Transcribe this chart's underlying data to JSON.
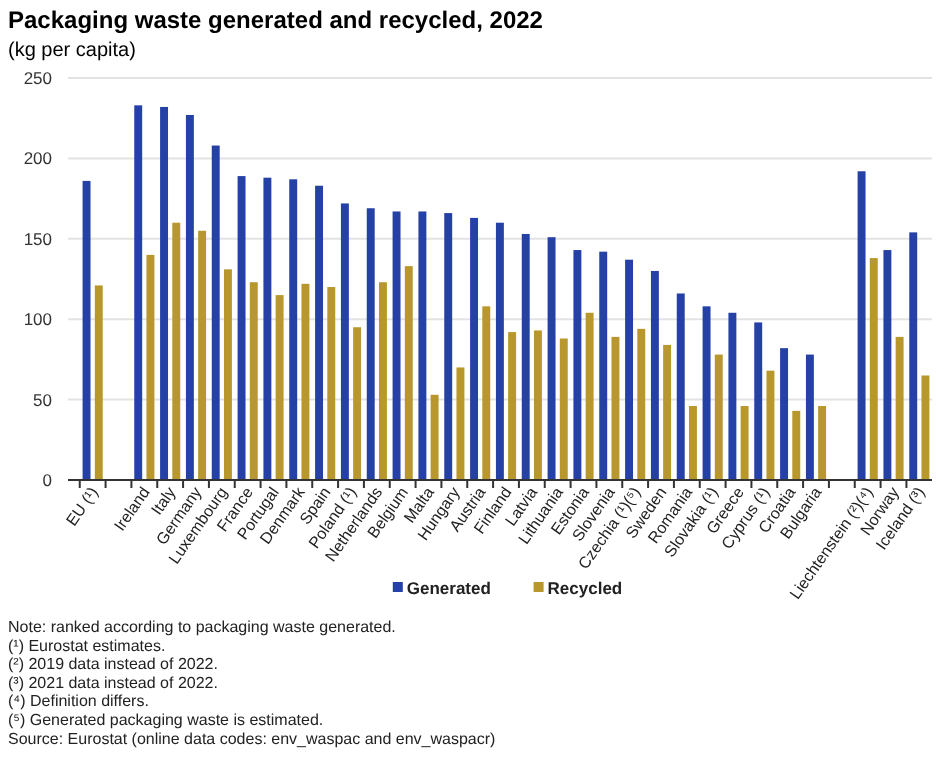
{
  "chart_data": {
    "type": "bar",
    "title": "Packaging waste generated and recycled, 2022",
    "subtitle": "(kg per capita)",
    "categories": [
      "EU (¹)",
      null,
      "Ireland",
      "Italy",
      "Germany",
      "Luxembourg",
      "France",
      "Portugal",
      "Denmark",
      "Spain",
      "Poland (¹)",
      "Netherlands",
      "Belgium",
      "Malta",
      "Hungary",
      "Austria",
      "Finland",
      "Latvia",
      "Lithuania",
      "Estonia",
      "Slovenia",
      "Czechia (¹)(⁵)",
      "Sweden",
      "Romania",
      "Slovakia (¹)",
      "Greece",
      "Cyprus (¹)",
      "Croatia",
      "Bulgaria",
      null,
      "Liechtenstein (²)(⁴)",
      "Norway",
      "Iceland (³)"
    ],
    "series": [
      {
        "name": "Generated",
        "color": "#2541a6",
        "values": [
          186,
          null,
          233,
          232,
          227,
          208,
          189,
          188,
          187,
          183,
          172,
          169,
          167,
          167,
          166,
          163,
          160,
          153,
          151,
          143,
          142,
          137,
          130,
          116,
          108,
          104,
          98,
          82,
          78,
          null,
          192,
          143,
          154
        ]
      },
      {
        "name": "Recycled",
        "color": "#b8982c",
        "values": [
          121,
          null,
          140,
          160,
          155,
          131,
          123,
          115,
          122,
          120,
          95,
          123,
          133,
          53,
          70,
          108,
          92,
          93,
          88,
          104,
          89,
          94,
          84,
          46,
          78,
          46,
          68,
          43,
          46,
          null,
          138,
          89,
          65
        ]
      }
    ],
    "ylim": [
      0,
      250
    ],
    "yticks": [
      0,
      50,
      100,
      150,
      200,
      250
    ],
    "grid": "y",
    "legend": "bottom",
    "annotations": [
      "Note: ranked according to packaging waste generated.",
      "(¹) Eurostat estimates.",
      "(²) 2019 data instead of 2022.",
      "(³) 2021 data instead of 2022.",
      "(⁴) Definition differs.",
      "(⁵) Generated packaging waste is estimated.",
      "Source: Eurostat (online data codes: env_waspac and env_waspacr)"
    ]
  }
}
